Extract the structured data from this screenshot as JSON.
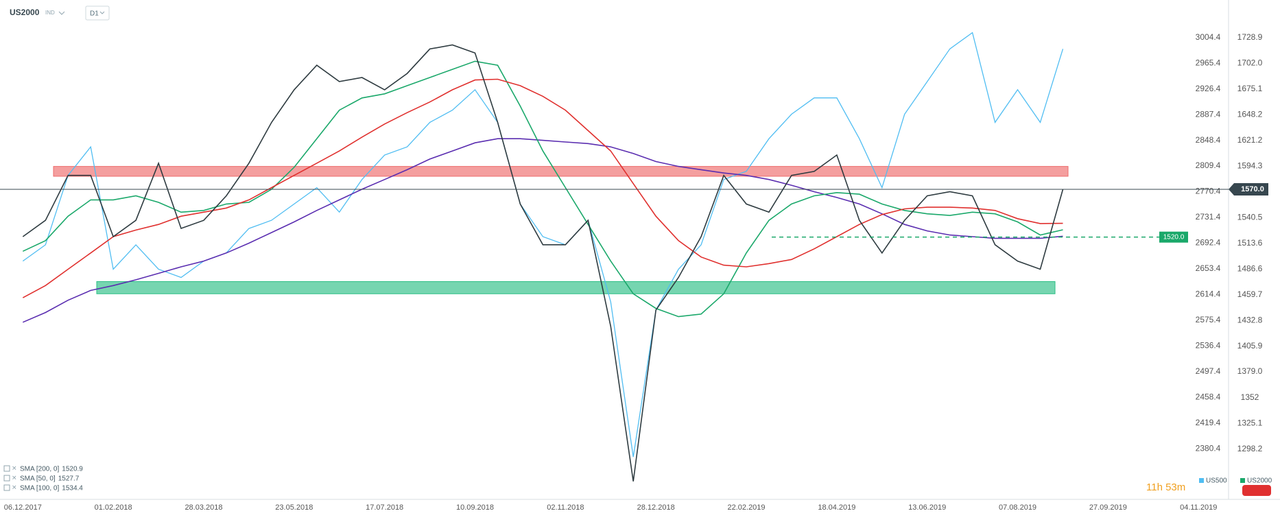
{
  "header": {
    "symbol": "US2000",
    "kind": "IND",
    "interval": "D1",
    "countdown": "11h 53m"
  },
  "chart_data": {
    "type": "line",
    "categories": [
      "06.12.2017",
      null,
      null,
      null,
      "01.02.2018",
      null,
      null,
      null,
      "28.03.2018",
      null,
      null,
      null,
      "23.05.2018",
      null,
      null,
      null,
      "17.07.2018",
      null,
      null,
      null,
      "10.09.2018",
      null,
      null,
      null,
      "02.11.2018",
      null,
      null,
      null,
      "28.12.2018",
      null,
      null,
      null,
      "22.02.2019",
      null,
      null,
      null,
      "18.04.2019",
      null,
      null,
      null,
      "13.06.2019",
      null,
      null,
      null,
      "07.08.2019",
      null,
      null,
      null,
      "27.09.2019",
      null,
      null,
      null,
      "04.11.2019"
    ],
    "ylim": [
      2303.7,
      3061.3
    ],
    "yticks": [
      3004.4,
      2965.4,
      2926.4,
      2887.4,
      2848.4,
      2809.4,
      2770.4,
      2731.4,
      2692.4,
      2653.4,
      2614.4,
      2575.4,
      2536.4,
      2497.4,
      2458.4,
      2419.4,
      2380.4
    ],
    "y2lim": [
      1245.5,
      1768.2
    ],
    "y2ticks": [
      1728.9,
      {
        "value": 1702,
        "label": "1702.0"
      },
      1675.1,
      1648.2,
      1621.2,
      1594.3,
      1540.5,
      1513.6,
      1486.6,
      1459.7,
      1432.8,
      1405.9,
      {
        "value": 1379,
        "label": "1379.0"
      },
      1352,
      1325.1,
      1298.2
    ],
    "series": [
      {
        "name": "US500",
        "color": "#4fbdf2",
        "axis": "y",
        "values": [
          2665.2,
          2689.9,
          2795.2,
          2838.5,
          2652.8,
          2689.9,
          2652.8,
          2640.4,
          2665.2,
          2677.6,
          2714.7,
          2727.1,
          2751.8,
          2776.6,
          2739.5,
          2789.0,
          2826.1,
          2838.5,
          2875.6,
          2894.2,
          2925.2,
          2875.6,
          2751.8,
          2702.3,
          2689.9,
          2727.1,
          2603.3,
          2368.1,
          2590.9,
          2652.8,
          2689.9,
          2789.0,
          2801.4,
          2850.9,
          2888.0,
          2912.8,
          2912.8,
          2850.9,
          2776.6,
          2888.0,
          2937.5,
          2987.1,
          3011.8,
          2875.6,
          2925.2,
          2875.6,
          2987.1,
          null,
          null,
          null,
          null,
          null,
          null
        ]
      },
      {
        "name": "US2000",
        "color": "#2e3b40",
        "axis": "y2",
        "values": [
          1520.5,
          1537.6,
          1584.6,
          1584.6,
          1520.5,
          1537.6,
          1597.4,
          1529.1,
          1537.6,
          1563.2,
          1597.4,
          1640.1,
          1674.2,
          1699.9,
          1682.8,
          1687.1,
          1674.2,
          1691.3,
          1716.9,
          1721.2,
          1712.7,
          1640.1,
          1554.7,
          1512.0,
          1512.0,
          1537.6,
          1426.6,
          1264.3,
          1443.7,
          1477.8,
          1520.5,
          1584.6,
          1554.7,
          1546.1,
          1584.6,
          1588.8,
          1605.9,
          1537.6,
          1503.4,
          1537.6,
          1563.2,
          1567.5,
          1563.2,
          1512.0,
          1494.9,
          1486.4,
          1570,
          null,
          null,
          null,
          null,
          null,
          null
        ]
      }
    ],
    "legend_colors": [
      "#4fbdf2",
      "#1aa86a"
    ],
    "indicators": [
      {
        "name": "SMA [200, 0]",
        "color": "#5a2db0",
        "axis": "y2",
        "values": [
          1430.9,
          1441.1,
          1453.9,
          1464.2,
          1469.3,
          1475.3,
          1482.1,
          1488.9,
          1494.9,
          1503.4,
          1513.7,
          1524.8,
          1535.9,
          1547.9,
          1559.0,
          1570.1,
          1580.3,
          1590.6,
          1601.7,
          1610.2,
          1618.7,
          1623.0,
          1623.0,
          1621.3,
          1619.6,
          1617.9,
          1614.5,
          1607.6,
          1599.1,
          1594.0,
          1590.6,
          1587.1,
          1584.6,
          1580.3,
          1574.3,
          1567.5,
          1561.5,
          1554.7,
          1544.4,
          1533.3,
          1526.5,
          1522.2,
          1520.5,
          1518.8,
          1518.8,
          1518.8,
          1520.9,
          null,
          null,
          null,
          null,
          null,
          null
        ]
      },
      {
        "name": "SMA [50, 0]",
        "color": "#1aa86a",
        "axis": "y2",
        "values": [
          1505.2,
          1516.3,
          1541.9,
          1559.0,
          1559.0,
          1563.2,
          1556.4,
          1546.1,
          1547.9,
          1554.7,
          1556.4,
          1570.1,
          1593.1,
          1623.0,
          1652.9,
          1665.7,
          1670.0,
          1678.5,
          1687.1,
          1695.6,
          1704.1,
          1699.9,
          1657.2,
          1610.2,
          1571.8,
          1533.3,
          1494.9,
          1460.7,
          1445.4,
          1436.8,
          1439.4,
          1460.7,
          1503.4,
          1537.6,
          1554.7,
          1563.2,
          1566.6,
          1564.9,
          1554.7,
          1547.9,
          1544.4,
          1542.7,
          1546.1,
          1544.4,
          1535.9,
          1522.2,
          1527.7,
          null,
          null,
          null,
          null,
          null,
          null
        ]
      },
      {
        "name": "SMA [100, 0]",
        "color": "#e0302e",
        "axis": "y2",
        "values": [
          1456.5,
          1469.3,
          1486.4,
          1503.4,
          1520.5,
          1527.4,
          1533.3,
          1541.9,
          1546.1,
          1550.4,
          1559.0,
          1571.8,
          1584.6,
          1597.4,
          1610.2,
          1624.7,
          1638.4,
          1650.3,
          1661.4,
          1674.2,
          1684.5,
          1685.3,
          1678.5,
          1667.4,
          1652.9,
          1631.5,
          1610.2,
          1576.0,
          1541.9,
          1516.3,
          1499.2,
          1490.6,
          1488.9,
          1492.3,
          1496.6,
          1507.7,
          1520.5,
          1533.3,
          1543.6,
          1549.6,
          1551.3,
          1551.3,
          1550.4,
          1547.9,
          1539.3,
          1534.2,
          1534.4,
          null,
          null,
          null,
          null,
          null,
          null
        ]
      }
    ],
    "zones": [
      {
        "from": 1583.7,
        "to": 1594.0,
        "color": "#ee6b6b"
      },
      {
        "from": 1460.7,
        "to": 1473.5,
        "color": "#2cbf86"
      }
    ],
    "hlines": [
      {
        "value": 1570,
        "label": "1570.0",
        "color": "#37474f",
        "style": "solid"
      },
      {
        "value": 1520,
        "label": "1520.0",
        "color": "#1aa86a",
        "style": "dashed"
      }
    ]
  }
}
